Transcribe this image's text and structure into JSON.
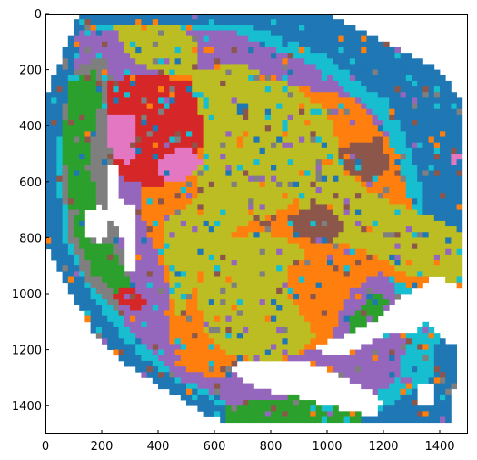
{
  "chart_data": {
    "type": "heatmap",
    "title": "",
    "xlabel": "",
    "ylabel": "",
    "xlim": [
      0,
      1500
    ],
    "ylim": [
      1500,
      0
    ],
    "x_ticks": [
      0,
      200,
      400,
      600,
      800,
      1000,
      1200,
      1400
    ],
    "y_ticks": [
      0,
      200,
      400,
      600,
      800,
      1000,
      1200,
      1400
    ],
    "x_tick_labels": [
      "0",
      "200",
      "400",
      "600",
      "800",
      "1000",
      "1200",
      "1400"
    ],
    "y_tick_labels": [
      "0",
      "200",
      "400",
      "600",
      "800",
      "1000",
      "1200",
      "1400"
    ],
    "grid": false,
    "cell_size": 20,
    "background_color": "#ffffff",
    "colors": {
      "blue": "#1f77b4",
      "orange": "#ff7f0e",
      "green": "#2ca02c",
      "red": "#d62728",
      "purple": "#9467bd",
      "brown": "#8c564b",
      "pink": "#e377c2",
      "gray": "#7f7f7f",
      "olive": "#bcbd22",
      "cyan": "#17becf"
    },
    "regions": [
      {
        "color": "blue",
        "shape": "poly",
        "points": [
          [
            120,
            0
          ],
          [
            1000,
            0
          ],
          [
            1400,
            200
          ],
          [
            1490,
            330
          ],
          [
            1490,
            1000
          ],
          [
            1300,
            1000
          ],
          [
            1430,
            1100
          ],
          [
            1460,
            1230
          ],
          [
            1440,
            1460
          ],
          [
            1300,
            1460
          ],
          [
            1180,
            1470
          ],
          [
            700,
            1470
          ],
          [
            580,
            1440
          ],
          [
            460,
            1360
          ],
          [
            340,
            1290
          ],
          [
            200,
            1180
          ],
          [
            90,
            1000
          ],
          [
            0,
            830
          ],
          [
            0,
            300
          ],
          [
            40,
            200
          ]
        ]
      },
      {
        "color": "cyan",
        "shape": "poly",
        "points": [
          [
            140,
            40
          ],
          [
            700,
            30
          ],
          [
            1000,
            150
          ],
          [
            1250,
            350
          ],
          [
            1350,
            650
          ],
          [
            1300,
            900
          ],
          [
            1400,
            1050
          ],
          [
            1380,
            1300
          ],
          [
            1150,
            1440
          ],
          [
            700,
            1440
          ],
          [
            480,
            1320
          ],
          [
            300,
            1200
          ],
          [
            160,
            1000
          ],
          [
            60,
            800
          ],
          [
            40,
            500
          ],
          [
            80,
            250
          ]
        ]
      },
      {
        "color": "purple",
        "shape": "poly",
        "points": [
          [
            130,
            60
          ],
          [
            650,
            60
          ],
          [
            950,
            180
          ],
          [
            1200,
            380
          ],
          [
            1270,
            650
          ],
          [
            1200,
            900
          ],
          [
            1300,
            1100
          ],
          [
            1250,
            1300
          ],
          [
            1100,
            1420
          ],
          [
            700,
            1420
          ],
          [
            480,
            1300
          ],
          [
            320,
            1150
          ],
          [
            200,
            1000
          ],
          [
            80,
            800
          ],
          [
            60,
            500
          ],
          [
            90,
            250
          ]
        ]
      },
      {
        "color": "gray",
        "shape": "poly",
        "points": [
          [
            100,
            200
          ],
          [
            200,
            150
          ],
          [
            260,
            300
          ],
          [
            230,
            600
          ],
          [
            280,
            900
          ],
          [
            330,
            1030
          ],
          [
            260,
            1060
          ],
          [
            150,
            960
          ],
          [
            80,
            800
          ],
          [
            60,
            550
          ],
          [
            70,
            320
          ]
        ]
      },
      {
        "color": "green",
        "shape": "poly",
        "points": [
          [
            90,
            250
          ],
          [
            170,
            200
          ],
          [
            200,
            300
          ],
          [
            160,
            500
          ],
          [
            180,
            700
          ],
          [
            270,
            900
          ],
          [
            330,
            1000
          ],
          [
            270,
            1020
          ],
          [
            170,
            930
          ],
          [
            100,
            780
          ],
          [
            70,
            560
          ],
          [
            70,
            380
          ]
        ]
      },
      {
        "color": "green",
        "shape": "poly",
        "points": [
          [
            650,
            1400
          ],
          [
            900,
            1360
          ],
          [
            1050,
            1400
          ],
          [
            1150,
            1440
          ],
          [
            1100,
            1460
          ],
          [
            800,
            1470
          ],
          [
            650,
            1450
          ]
        ]
      },
      {
        "color": "green",
        "shape": "poly",
        "points": [
          [
            1080,
            1100
          ],
          [
            1180,
            1000
          ],
          [
            1220,
            1030
          ],
          [
            1150,
            1150
          ],
          [
            1080,
            1180
          ]
        ]
      },
      {
        "color": "olive",
        "shape": "poly",
        "points": [
          [
            250,
            50
          ],
          [
            480,
            40
          ],
          [
            540,
            120
          ],
          [
            520,
            250
          ],
          [
            420,
            220
          ],
          [
            300,
            160
          ]
        ]
      },
      {
        "color": "orange",
        "shape": "poly",
        "points": [
          [
            380,
            240
          ],
          [
            640,
            200
          ],
          [
            900,
            260
          ],
          [
            1100,
            300
          ],
          [
            1250,
            500
          ],
          [
            1300,
            700
          ],
          [
            1490,
            800
          ],
          [
            1490,
            1000
          ],
          [
            1300,
            980
          ],
          [
            1180,
            920
          ],
          [
            1080,
            1000
          ],
          [
            1000,
            1180
          ],
          [
            800,
            1250
          ],
          [
            620,
            1300
          ],
          [
            500,
            1280
          ],
          [
            440,
            1150
          ],
          [
            430,
            950
          ],
          [
            380,
            820
          ],
          [
            330,
            700
          ],
          [
            340,
            500
          ]
        ]
      },
      {
        "color": "olive",
        "shape": "poly",
        "points": [
          [
            530,
            200
          ],
          [
            700,
            180
          ],
          [
            880,
            260
          ],
          [
            1000,
            350
          ],
          [
            1050,
            500
          ],
          [
            950,
            600
          ],
          [
            850,
            700
          ],
          [
            700,
            760
          ],
          [
            620,
            820
          ],
          [
            560,
            900
          ],
          [
            520,
            1000
          ],
          [
            480,
            1100
          ],
          [
            440,
            1000
          ],
          [
            430,
            900
          ],
          [
            420,
            780
          ],
          [
            440,
            650
          ],
          [
            500,
            600
          ],
          [
            560,
            500
          ],
          [
            560,
            380
          ],
          [
            500,
            280
          ]
        ]
      },
      {
        "color": "olive",
        "shape": "poly",
        "points": [
          [
            900,
            560
          ],
          [
            1050,
            500
          ],
          [
            1150,
            640
          ],
          [
            1300,
            700
          ],
          [
            1490,
            780
          ],
          [
            1490,
            960
          ],
          [
            1300,
            940
          ],
          [
            1150,
            850
          ],
          [
            1000,
            800
          ],
          [
            900,
            700
          ]
        ]
      },
      {
        "color": "olive",
        "shape": "poly",
        "points": [
          [
            580,
            820
          ],
          [
            760,
            780
          ],
          [
            900,
            820
          ],
          [
            950,
            920
          ],
          [
            850,
            960
          ],
          [
            900,
            1060
          ],
          [
            980,
            1140
          ],
          [
            900,
            1220
          ],
          [
            780,
            1240
          ],
          [
            650,
            1220
          ],
          [
            560,
            1130
          ],
          [
            540,
            1000
          ]
        ]
      },
      {
        "color": "orange",
        "shape": "poly",
        "points": [
          [
            880,
            880
          ],
          [
            960,
            860
          ],
          [
            1000,
            940
          ],
          [
            960,
            1060
          ],
          [
            890,
            1000
          ],
          [
            860,
            930
          ]
        ]
      },
      {
        "color": "orange",
        "shape": "poly",
        "points": [
          [
            380,
            560
          ],
          [
            520,
            560
          ],
          [
            560,
            640
          ],
          [
            480,
            700
          ],
          [
            420,
            760
          ],
          [
            380,
            700
          ]
        ]
      },
      {
        "color": "red",
        "shape": "poly",
        "points": [
          [
            230,
            250
          ],
          [
            350,
            210
          ],
          [
            520,
            250
          ],
          [
            560,
            400
          ],
          [
            540,
            550
          ],
          [
            480,
            600
          ],
          [
            380,
            620
          ],
          [
            300,
            600
          ],
          [
            240,
            560
          ],
          [
            220,
            400
          ]
        ]
      },
      {
        "color": "pink",
        "shape": "poly",
        "points": [
          [
            230,
            360
          ],
          [
            310,
            350
          ],
          [
            330,
            480
          ],
          [
            300,
            540
          ],
          [
            240,
            510
          ],
          [
            220,
            430
          ]
        ]
      },
      {
        "color": "pink",
        "shape": "poly",
        "points": [
          [
            420,
            500
          ],
          [
            520,
            480
          ],
          [
            560,
            540
          ],
          [
            500,
            600
          ],
          [
            420,
            610
          ],
          [
            400,
            560
          ]
        ]
      },
      {
        "color": "red",
        "shape": "poly",
        "points": [
          [
            240,
            1000
          ],
          [
            300,
            980
          ],
          [
            370,
            1030
          ],
          [
            330,
            1060
          ],
          [
            260,
            1040
          ]
        ]
      },
      {
        "color": "brown",
        "shape": "poly",
        "points": [
          [
            860,
            720
          ],
          [
            1000,
            680
          ],
          [
            1060,
            760
          ],
          [
            1000,
            830
          ],
          [
            900,
            800
          ]
        ]
      },
      {
        "color": "brown",
        "shape": "poly",
        "points": [
          [
            1040,
            480
          ],
          [
            1200,
            440
          ],
          [
            1220,
            560
          ],
          [
            1140,
            600
          ],
          [
            1060,
            560
          ]
        ]
      },
      {
        "color": "pink",
        "shape": "poly",
        "points": [
          [
            1440,
            500
          ],
          [
            1490,
            500
          ],
          [
            1490,
            540
          ],
          [
            1440,
            540
          ]
        ]
      },
      {
        "color": "white",
        "shape": "poly",
        "points": [
          [
            220,
            540
          ],
          [
            260,
            540
          ],
          [
            260,
            660
          ],
          [
            330,
            700
          ],
          [
            330,
            930
          ],
          [
            290,
            920
          ],
          [
            270,
            800
          ],
          [
            220,
            720
          ]
        ]
      },
      {
        "color": "white",
        "shape": "poly",
        "points": [
          [
            150,
            700
          ],
          [
            200,
            680
          ],
          [
            230,
            750
          ],
          [
            200,
            820
          ],
          [
            150,
            790
          ]
        ]
      },
      {
        "color": "white",
        "shape": "poly",
        "points": [
          [
            1220,
            1040
          ],
          [
            1400,
            930
          ],
          [
            1490,
            1000
          ],
          [
            1480,
            1080
          ],
          [
            1440,
            1180
          ],
          [
            1350,
            1100
          ],
          [
            1300,
            1150
          ],
          [
            1220,
            1140
          ],
          [
            1100,
            1200
          ],
          [
            1040,
            1230
          ],
          [
            980,
            1230
          ],
          [
            960,
            1180
          ],
          [
            1060,
            1150
          ],
          [
            1180,
            1090
          ]
        ]
      },
      {
        "color": "white",
        "shape": "poly",
        "points": [
          [
            660,
            1260
          ],
          [
            700,
            1240
          ],
          [
            900,
            1240
          ],
          [
            980,
            1260
          ],
          [
            1050,
            1300
          ],
          [
            1120,
            1330
          ],
          [
            1200,
            1380
          ],
          [
            1180,
            1440
          ],
          [
            1080,
            1420
          ],
          [
            1000,
            1400
          ],
          [
            900,
            1370
          ],
          [
            760,
            1340
          ],
          [
            680,
            1300
          ]
        ]
      },
      {
        "color": "white",
        "shape": "poly",
        "points": [
          [
            1320,
            1330
          ],
          [
            1380,
            1330
          ],
          [
            1380,
            1400
          ],
          [
            1320,
            1400
          ]
        ]
      }
    ]
  }
}
